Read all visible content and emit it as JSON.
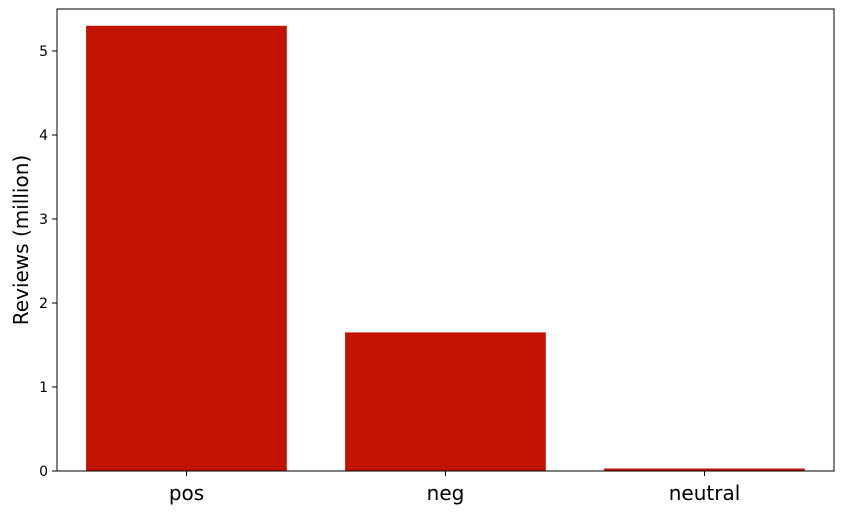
{
  "chart_data": {
    "type": "bar",
    "title": "",
    "xlabel": "",
    "ylabel": "Reviews (million)",
    "categories": [
      "pos",
      "neg",
      "neutral"
    ],
    "values": [
      5.3,
      1.65,
      0.03
    ],
    "ylim": [
      0,
      5.5
    ],
    "yticks": [
      0,
      1,
      2,
      3,
      4,
      5
    ],
    "ytick_labels": [
      "0",
      "1",
      "2",
      "3",
      "4",
      "5"
    ],
    "grid": false,
    "legend": "none",
    "bar_color": "#c11300"
  }
}
